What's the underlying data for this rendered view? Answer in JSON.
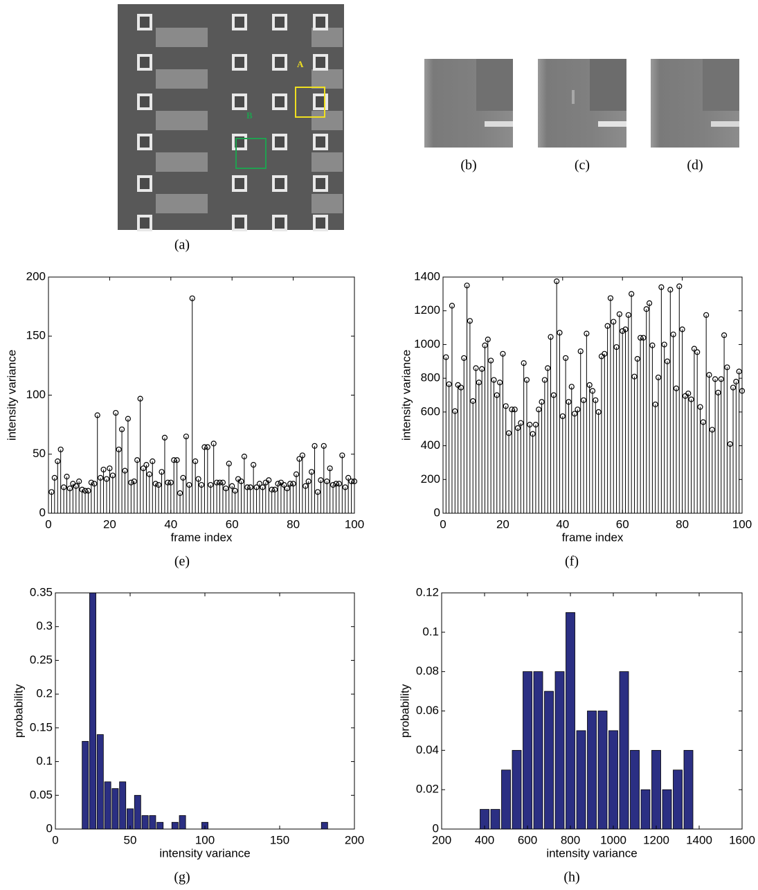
{
  "panels": [
    {
      "caption": "(a)",
      "labels": [
        "A",
        "B"
      ]
    },
    {
      "caption": "(b)"
    },
    {
      "caption": "(c)"
    },
    {
      "caption": "(d)"
    }
  ],
  "chart_data": [
    {
      "type": "stem",
      "caption": "(e)",
      "xlabel": "frame index",
      "ylabel": "intensity variance",
      "color": "#000000",
      "x": [
        1,
        2,
        3,
        4,
        5,
        6,
        7,
        8,
        9,
        10,
        11,
        12,
        13,
        14,
        15,
        16,
        17,
        18,
        19,
        20,
        21,
        22,
        23,
        24,
        25,
        26,
        27,
        28,
        29,
        30,
        31,
        32,
        33,
        34,
        35,
        36,
        37,
        38,
        39,
        40,
        41,
        42,
        43,
        44,
        45,
        46,
        47,
        48,
        49,
        50,
        51,
        52,
        53,
        54,
        55,
        56,
        57,
        58,
        59,
        60,
        61,
        62,
        63,
        64,
        65,
        66,
        67,
        68,
        69,
        70,
        71,
        72,
        73,
        74,
        75,
        76,
        77,
        78,
        79,
        80,
        81,
        82,
        83,
        84,
        85,
        86,
        87,
        88,
        89,
        90,
        91,
        92,
        93,
        94,
        95,
        96,
        97,
        98,
        99,
        100
      ],
      "values": [
        18,
        30,
        44,
        54,
        22,
        31,
        21,
        25,
        23,
        27,
        20,
        19,
        19,
        26,
        25,
        83,
        30,
        37,
        29,
        38,
        32,
        85,
        54,
        71,
        36,
        80,
        26,
        27,
        45,
        97,
        38,
        41,
        33,
        44,
        25,
        24,
        35,
        64,
        26,
        26,
        45,
        45,
        17,
        30,
        65,
        24,
        182,
        44,
        29,
        24,
        56,
        56,
        24,
        59,
        26,
        26,
        26,
        21,
        42,
        23,
        19,
        29,
        27,
        48,
        22,
        22,
        41,
        22,
        25,
        22,
        26,
        28,
        20,
        20,
        25,
        26,
        24,
        21,
        25,
        25,
        33,
        46,
        49,
        23,
        27,
        35,
        57,
        18,
        28,
        57,
        27,
        38,
        24,
        25,
        25,
        49,
        22,
        30,
        27,
        27
      ],
      "xlim": [
        0,
        100
      ],
      "ylim": [
        0,
        200
      ],
      "xticks": [
        0,
        20,
        40,
        60,
        80,
        100
      ],
      "yticks": [
        0,
        50,
        100,
        150,
        200
      ]
    },
    {
      "type": "stem",
      "caption": "(f)",
      "xlabel": "frame index",
      "ylabel": "intensity variance",
      "color": "#000000",
      "x": [
        1,
        2,
        3,
        4,
        5,
        6,
        7,
        8,
        9,
        10,
        11,
        12,
        13,
        14,
        15,
        16,
        17,
        18,
        19,
        20,
        21,
        22,
        23,
        24,
        25,
        26,
        27,
        28,
        29,
        30,
        31,
        32,
        33,
        34,
        35,
        36,
        37,
        38,
        39,
        40,
        41,
        42,
        43,
        44,
        45,
        46,
        47,
        48,
        49,
        50,
        51,
        52,
        53,
        54,
        55,
        56,
        57,
        58,
        59,
        60,
        61,
        62,
        63,
        64,
        65,
        66,
        67,
        68,
        69,
        70,
        71,
        72,
        73,
        74,
        75,
        76,
        77,
        78,
        79,
        80,
        81,
        82,
        83,
        84,
        85,
        86,
        87,
        88,
        89,
        90,
        91,
        92,
        93,
        94,
        95,
        96,
        97,
        98,
        99,
        100
      ],
      "values": [
        925,
        765,
        1230,
        605,
        760,
        745,
        920,
        1350,
        1140,
        665,
        860,
        775,
        855,
        995,
        1030,
        905,
        790,
        700,
        775,
        945,
        635,
        475,
        615,
        615,
        505,
        535,
        890,
        790,
        525,
        470,
        525,
        615,
        660,
        790,
        860,
        1045,
        700,
        1375,
        1070,
        575,
        920,
        660,
        750,
        590,
        615,
        960,
        670,
        1065,
        760,
        725,
        670,
        600,
        930,
        945,
        1110,
        1275,
        1135,
        985,
        1180,
        1080,
        1090,
        1175,
        1300,
        810,
        915,
        1040,
        1040,
        1210,
        1245,
        995,
        645,
        805,
        1340,
        1000,
        900,
        1325,
        1060,
        740,
        1345,
        1090,
        695,
        710,
        675,
        975,
        955,
        630,
        540,
        1175,
        820,
        495,
        795,
        715,
        795,
        1055,
        865,
        410,
        745,
        780,
        840,
        725
      ],
      "xlim": [
        0,
        100
      ],
      "ylim": [
        0,
        1400
      ],
      "xticks": [
        0,
        20,
        40,
        60,
        80,
        100
      ],
      "yticks": [
        0,
        200,
        400,
        600,
        800,
        1000,
        1200,
        1400
      ]
    },
    {
      "type": "bar",
      "caption": "(g)",
      "xlabel": "intensity variance",
      "ylabel": "probability",
      "color": "#2b2f83",
      "x": [
        20,
        25,
        30,
        35,
        40,
        45,
        50,
        55,
        60,
        65,
        70,
        80,
        85,
        100,
        180
      ],
      "values": [
        0.13,
        0.35,
        0.14,
        0.07,
        0.06,
        0.07,
        0.03,
        0.05,
        0.02,
        0.02,
        0.01,
        0.01,
        0.02,
        0.01,
        0.01
      ],
      "xlim": [
        0,
        200
      ],
      "ylim": [
        0,
        0.35
      ],
      "xticks": [
        0,
        50,
        100,
        150,
        200
      ],
      "yticks": [
        0,
        0.05,
        0.1,
        0.15,
        0.2,
        0.25,
        0.3,
        0.35
      ]
    },
    {
      "type": "bar",
      "caption": "(h)",
      "xlabel": "intensity variance",
      "ylabel": "probability",
      "color": "#2b2f83",
      "x": [
        400,
        450,
        500,
        550,
        600,
        650,
        700,
        750,
        800,
        850,
        900,
        950,
        1000,
        1050,
        1100,
        1150,
        1200,
        1250,
        1300,
        1350
      ],
      "values": [
        0.01,
        0.01,
        0.03,
        0.04,
        0.08,
        0.08,
        0.07,
        0.08,
        0.11,
        0.05,
        0.06,
        0.06,
        0.05,
        0.08,
        0.04,
        0.02,
        0.04,
        0.02,
        0.03,
        0.04
      ],
      "xlim": [
        200,
        1600
      ],
      "ylim": [
        0,
        0.12
      ],
      "xticks": [
        200,
        400,
        600,
        800,
        1000,
        1200,
        1400,
        1600
      ],
      "yticks": [
        0,
        0.02,
        0.04,
        0.06,
        0.08,
        0.1,
        0.12
      ]
    }
  ]
}
